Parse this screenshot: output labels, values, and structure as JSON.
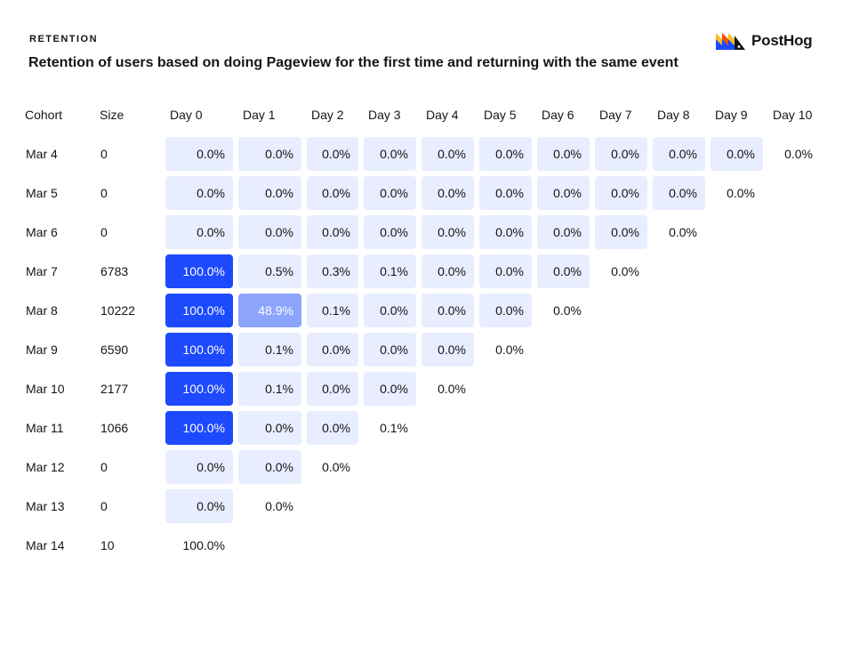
{
  "header": {
    "section_label": "RETENTION",
    "title": "Retention of users based on doing Pageview for the first time and returning with the same event",
    "brand_name": "PostHog",
    "brand_icon": "posthog-logo-icon"
  },
  "colors": {
    "full": "#1d4aff",
    "high": "#8da4fd",
    "low": "#e8edff",
    "text_dark": "#151515",
    "text_light": "#ffffff"
  },
  "chart_data": {
    "type": "table",
    "title": "Retention of users based on doing Pageview for the first time and returning with the same event",
    "columns": [
      "Cohort",
      "Size",
      "Day 0",
      "Day 1",
      "Day 2",
      "Day 3",
      "Day 4",
      "Day 5",
      "Day 6",
      "Day 7",
      "Day 8",
      "Day 9",
      "Day 10"
    ],
    "rows": [
      {
        "cohort": "Mar 4",
        "size": "0",
        "values": [
          "0.0%",
          "0.0%",
          "0.0%",
          "0.0%",
          "0.0%",
          "0.0%",
          "0.0%",
          "0.0%",
          "0.0%",
          "0.0%",
          "0.0%"
        ]
      },
      {
        "cohort": "Mar 5",
        "size": "0",
        "values": [
          "0.0%",
          "0.0%",
          "0.0%",
          "0.0%",
          "0.0%",
          "0.0%",
          "0.0%",
          "0.0%",
          "0.0%",
          "0.0%"
        ]
      },
      {
        "cohort": "Mar 6",
        "size": "0",
        "values": [
          "0.0%",
          "0.0%",
          "0.0%",
          "0.0%",
          "0.0%",
          "0.0%",
          "0.0%",
          "0.0%",
          "0.0%"
        ]
      },
      {
        "cohort": "Mar 7",
        "size": "6783",
        "values": [
          "100.0%",
          "0.5%",
          "0.3%",
          "0.1%",
          "0.0%",
          "0.0%",
          "0.0%",
          "0.0%"
        ]
      },
      {
        "cohort": "Mar 8",
        "size": "10222",
        "values": [
          "100.0%",
          "48.9%",
          "0.1%",
          "0.0%",
          "0.0%",
          "0.0%",
          "0.0%"
        ]
      },
      {
        "cohort": "Mar 9",
        "size": "6590",
        "values": [
          "100.0%",
          "0.1%",
          "0.0%",
          "0.0%",
          "0.0%",
          "0.0%"
        ]
      },
      {
        "cohort": "Mar 10",
        "size": "2177",
        "values": [
          "100.0%",
          "0.1%",
          "0.0%",
          "0.0%",
          "0.0%"
        ]
      },
      {
        "cohort": "Mar 11",
        "size": "1066",
        "values": [
          "100.0%",
          "0.0%",
          "0.0%",
          "0.1%"
        ]
      },
      {
        "cohort": "Mar 12",
        "size": "0",
        "values": [
          "0.0%",
          "0.0%",
          "0.0%"
        ]
      },
      {
        "cohort": "Mar 13",
        "size": "0",
        "values": [
          "0.0%",
          "0.0%"
        ]
      },
      {
        "cohort": "Mar 14",
        "size": "10",
        "values": [
          "100.0%"
        ]
      }
    ]
  }
}
